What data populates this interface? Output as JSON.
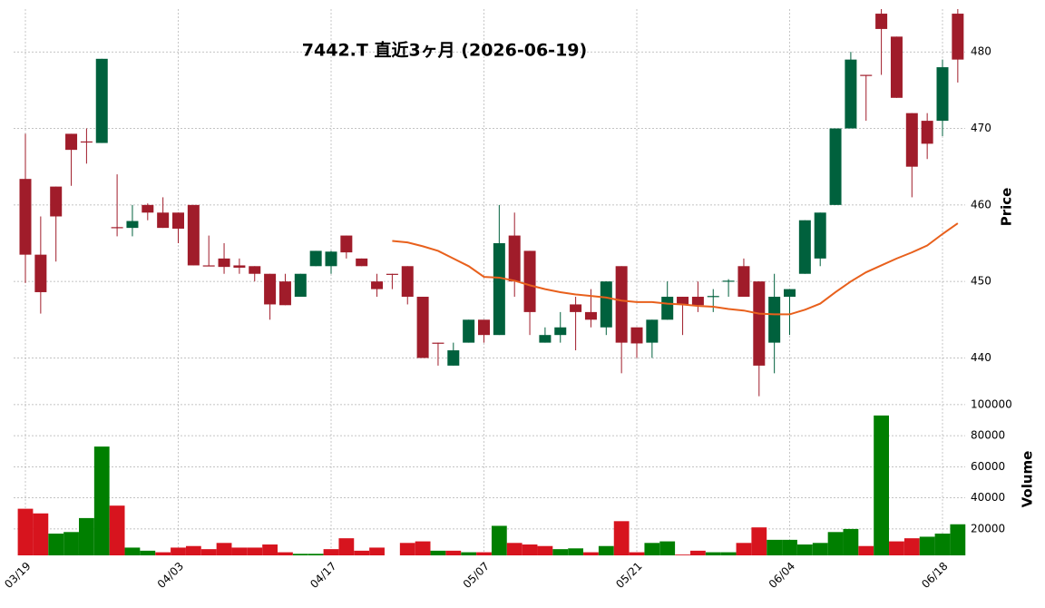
{
  "chart_data": {
    "type": "candlestick",
    "title": "7442.T  直近3ヶ月  (2026-06-19)",
    "categories": [
      "03/19",
      null,
      null,
      null,
      null,
      null,
      null,
      null,
      null,
      null,
      "04/03",
      null,
      null,
      null,
      null,
      null,
      null,
      null,
      null,
      null,
      "04/17",
      null,
      null,
      null,
      null,
      null,
      null,
      null,
      null,
      null,
      "05/07",
      null,
      null,
      null,
      null,
      null,
      null,
      null,
      null,
      null,
      "05/21",
      null,
      null,
      null,
      null,
      null,
      null,
      null,
      null,
      null,
      "06/04",
      null,
      null,
      null,
      null,
      null,
      null,
      null,
      null,
      null,
      "06/18",
      null
    ],
    "open": [
      463.4,
      453.5,
      462.4,
      469.3,
      468.3,
      468.1,
      457.1,
      457.0,
      460,
      459,
      459,
      460,
      452.1,
      453,
      452.1,
      452,
      451,
      450,
      448,
      452,
      452,
      456,
      453,
      450,
      451,
      452,
      448,
      442,
      439,
      442,
      445,
      443,
      456,
      454,
      442,
      443,
      447,
      446,
      444,
      452,
      444,
      442,
      445,
      448,
      448,
      448,
      450,
      452,
      450,
      442,
      448,
      451,
      453,
      460,
      470,
      477,
      485,
      482,
      472,
      471,
      471,
      485
    ],
    "high": [
      469.3,
      458.5,
      462.4,
      469.3,
      470,
      479.1,
      464,
      460,
      460.2,
      461,
      459,
      460,
      456,
      455,
      453,
      452,
      451,
      451,
      451,
      454,
      454,
      456,
      453,
      451,
      451,
      452,
      448,
      442,
      442,
      445,
      445,
      460,
      459,
      454,
      444,
      446,
      448,
      449,
      450,
      452,
      444,
      445,
      450,
      448,
      450,
      449,
      450.3,
      453,
      450,
      451,
      449,
      458,
      459,
      470,
      480,
      477,
      487,
      482,
      472,
      472,
      479,
      486
    ],
    "low": [
      449.8,
      445.8,
      452.6,
      462.5,
      465.4,
      468.1,
      455.9,
      455.9,
      458,
      457,
      455,
      452.1,
      452,
      451,
      451,
      450,
      445,
      446.9,
      448,
      452,
      451,
      453,
      452,
      448,
      449,
      447,
      440,
      439,
      439,
      442,
      442,
      443,
      448,
      443,
      442,
      442,
      441,
      444,
      443,
      438,
      440,
      440,
      445,
      443,
      446,
      446,
      448,
      448,
      435,
      438,
      443,
      451,
      452,
      460,
      470,
      471,
      477,
      474,
      461,
      466,
      469,
      476
    ],
    "close": [
      453.5,
      448.6,
      458.5,
      467.2,
      468.2,
      479.1,
      457.0,
      457.9,
      459.0,
      457.0,
      456.9,
      452.1,
      452.0,
      451.9,
      451.8,
      451,
      447,
      446.9,
      451,
      454,
      453.9,
      453.8,
      452,
      449,
      450.9,
      448,
      440,
      441.9,
      441,
      445,
      443,
      455,
      450,
      446,
      443,
      444,
      446,
      445,
      450,
      442,
      441.9,
      445,
      448,
      447,
      446.9,
      448.1,
      450.1,
      448,
      439,
      448,
      449,
      458,
      459,
      470,
      479,
      476.9,
      483,
      474,
      465,
      468,
      478,
      479
    ],
    "up_color": "#00613d",
    "down_color": "#a01c2a",
    "ylim": [
      434.6,
      485.6
    ],
    "yticks": [
      440,
      450,
      460,
      470,
      480
    ],
    "ylabel": "Price",
    "grid": true,
    "moving_average": {
      "color": "#e8601c",
      "values": [
        null,
        null,
        null,
        null,
        null,
        null,
        null,
        null,
        null,
        null,
        null,
        null,
        null,
        null,
        null,
        null,
        null,
        null,
        null,
        null,
        null,
        null,
        null,
        null,
        455.3,
        455.1,
        454.6,
        454.0,
        453,
        452,
        450.6,
        450.5,
        450.1,
        449.5,
        449.0,
        448.6,
        448.3,
        448.1,
        447.9,
        447.5,
        447.3,
        447.3,
        447.1,
        447.0,
        446.8,
        446.7,
        446.4,
        446.2,
        445.8,
        445.7,
        445.7,
        446.3,
        447.1,
        448.6,
        450.0,
        451.2,
        452.1,
        453,
        453.8,
        454.7,
        456.2,
        457.6
      ]
    },
    "volume": {
      "ylabel": "Volume",
      "up_color": "#007f00",
      "down_color": "#d7141e",
      "ylim": [
        3000,
        100500
      ],
      "yticks": [
        20000,
        40000,
        60000,
        80000,
        100000
      ],
      "values": [
        33000,
        30000,
        17000,
        18000,
        27000,
        73000,
        35000,
        8000,
        6000,
        5000,
        8000,
        9000,
        7000,
        11000,
        8000,
        8000,
        10000,
        5000,
        4000,
        4000,
        7000,
        14000,
        6000,
        8000,
        3000,
        11000,
        12000,
        6000,
        6000,
        5000,
        5000,
        22000,
        11000,
        10000,
        9000,
        7000,
        7500,
        5000,
        9000,
        25000,
        5000,
        11000,
        12000,
        3500,
        6000,
        5000,
        5000,
        11000,
        21000,
        13000,
        13000,
        10000,
        11000,
        18000,
        20000,
        9000,
        93000,
        12000,
        14000,
        15000,
        17000,
        23000
      ]
    }
  }
}
